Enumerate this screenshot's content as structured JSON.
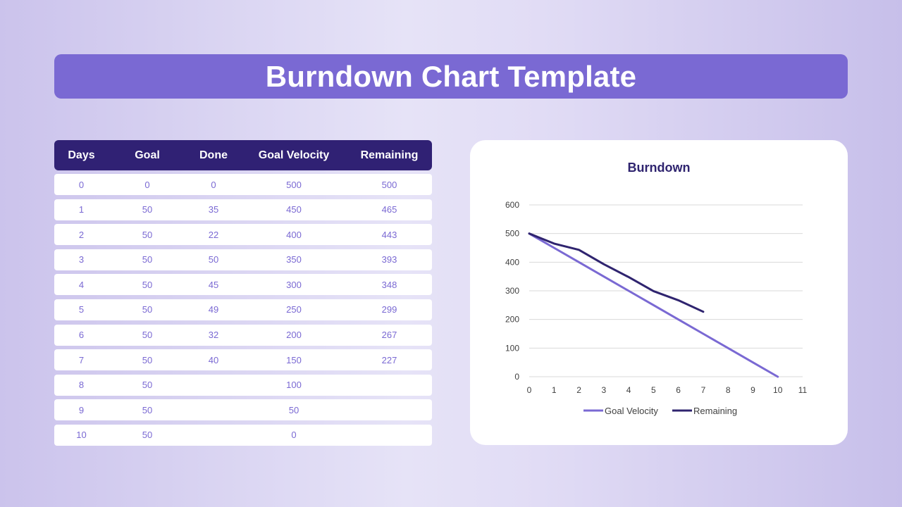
{
  "title": "Burndown Chart Template",
  "table": {
    "headers": [
      "Days",
      "Goal",
      "Done",
      "Goal Velocity",
      "Remaining"
    ],
    "rows": [
      [
        "0",
        "0",
        "0",
        "500",
        "500"
      ],
      [
        "1",
        "50",
        "35",
        "450",
        "465"
      ],
      [
        "2",
        "50",
        "22",
        "400",
        "443"
      ],
      [
        "3",
        "50",
        "50",
        "350",
        "393"
      ],
      [
        "4",
        "50",
        "45",
        "300",
        "348"
      ],
      [
        "5",
        "50",
        "49",
        "250",
        "299"
      ],
      [
        "6",
        "50",
        "32",
        "200",
        "267"
      ],
      [
        "7",
        "50",
        "40",
        "150",
        "227"
      ],
      [
        "8",
        "50",
        "",
        "100",
        ""
      ],
      [
        "9",
        "50",
        "",
        "50",
        ""
      ],
      [
        "10",
        "50",
        "",
        "0",
        ""
      ]
    ]
  },
  "chart_data": {
    "type": "line",
    "title": "Burndown",
    "xlabel": "",
    "ylabel": "",
    "x": [
      0,
      1,
      2,
      3,
      4,
      5,
      6,
      7,
      8,
      9,
      10,
      11
    ],
    "xlim": [
      0,
      11
    ],
    "ylim": [
      0,
      600
    ],
    "yticks": [
      0,
      100,
      200,
      300,
      400,
      500,
      600
    ],
    "grid": true,
    "legend_position": "bottom",
    "series": [
      {
        "name": "Goal Velocity",
        "color": "#7a69d3",
        "x": [
          0,
          1,
          2,
          3,
          4,
          5,
          6,
          7,
          8,
          9,
          10
        ],
        "values": [
          500,
          450,
          400,
          350,
          300,
          250,
          200,
          150,
          100,
          50,
          0
        ]
      },
      {
        "name": "Remaining",
        "color": "#2f246f",
        "x": [
          0,
          1,
          2,
          3,
          4,
          5,
          6,
          7
        ],
        "values": [
          500,
          465,
          443,
          393,
          348,
          299,
          267,
          227
        ]
      }
    ]
  }
}
